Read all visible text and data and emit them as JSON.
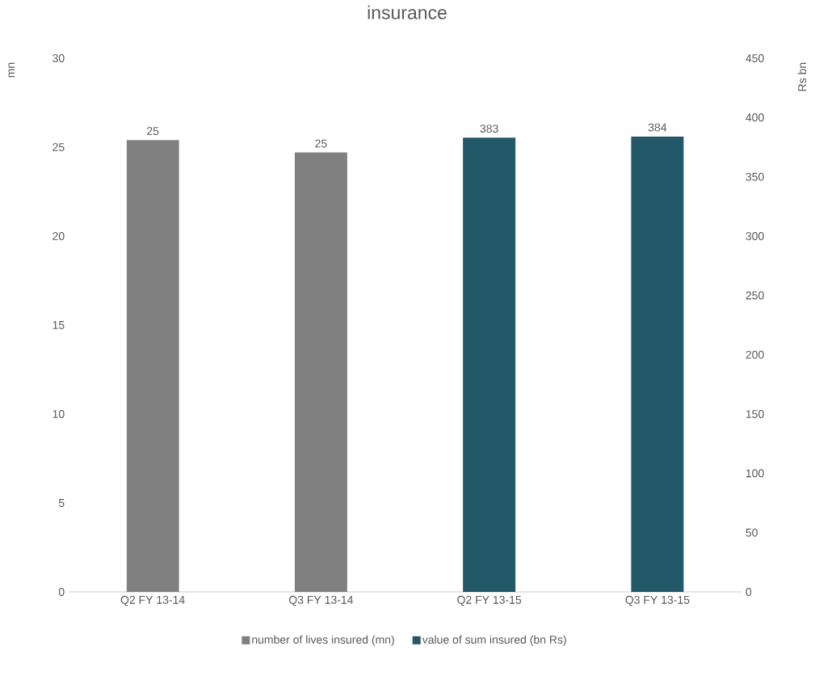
{
  "chart_data": {
    "type": "bar",
    "title": "insurance",
    "ylabel": "mn",
    "y2label": "Rs bn",
    "categories": [
      "Q2 FY 13-14",
      "Q3 FY 13-14",
      "Q2 FY 13-15",
      "Q3 FY 13-15"
    ],
    "series": [
      {
        "name": "number of lives insured (mn)",
        "color": "#808080",
        "values": [
          25.4,
          24.7,
          null,
          null
        ],
        "value_labels": [
          "25",
          "25",
          null,
          null
        ]
      },
      {
        "name": "value of sum insured (bn Rs)",
        "color": "#235868",
        "axis": "y2",
        "values": [
          null,
          null,
          383,
          384
        ],
        "value_labels": [
          null,
          null,
          "383",
          "384"
        ]
      }
    ],
    "ylim": [
      0,
      30
    ],
    "yticks": [
      0,
      5,
      10,
      15,
      20,
      25,
      30
    ],
    "y2lim": [
      0,
      450
    ],
    "y2ticks": [
      0,
      50,
      100,
      150,
      200,
      250,
      300,
      350,
      400,
      450
    ],
    "legend": "bottom",
    "grid": false
  }
}
